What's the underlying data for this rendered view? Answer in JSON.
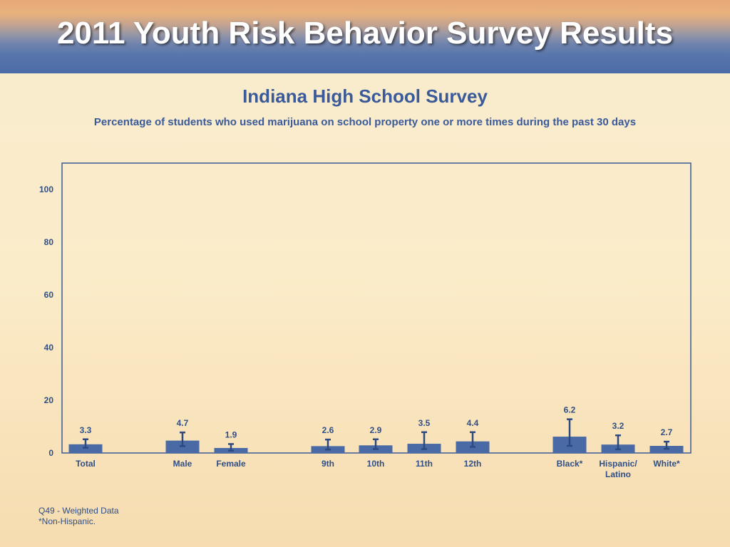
{
  "banner": {
    "title": "2011 Youth Risk Behavior Survey Results"
  },
  "chart_data": {
    "type": "bar",
    "title": "Indiana High School Survey",
    "subtitle": "Percentage of students who used marijuana on school property one or more times during the past 30 days",
    "xlabel": "",
    "ylabel": "",
    "ylim": [
      0,
      110
    ],
    "yticks": [
      0,
      20,
      40,
      60,
      80,
      100
    ],
    "grid": false,
    "legend": "none",
    "colors": {
      "bar": "#4a6aa5",
      "error_bar": "#2c4a80",
      "axis": "#3b5997"
    },
    "groups": [
      {
        "categories": [
          {
            "label": "Total",
            "value": 3.3,
            "ci": [
              2.0,
              5.2
            ]
          }
        ]
      },
      {
        "categories": [
          {
            "label": "Male",
            "value": 4.7,
            "ci": [
              2.6,
              7.8
            ]
          },
          {
            "label": "Female",
            "value": 1.9,
            "ci": [
              0.9,
              3.4
            ]
          }
        ]
      },
      {
        "categories": [
          {
            "label": "9th",
            "value": 2.6,
            "ci": [
              1.3,
              5.1
            ]
          },
          {
            "label": "10th",
            "value": 2.9,
            "ci": [
              1.5,
              5.2
            ]
          },
          {
            "label": "11th",
            "value": 3.5,
            "ci": [
              1.5,
              7.9
            ]
          },
          {
            "label": "12th",
            "value": 4.4,
            "ci": [
              2.3,
              7.9
            ]
          }
        ]
      },
      {
        "categories": [
          {
            "label": "Black*",
            "value": 6.2,
            "ci": [
              2.7,
              12.8
            ]
          },
          {
            "label": "Hispanic/\nLatino",
            "value": 3.2,
            "ci": [
              1.4,
              6.7
            ]
          },
          {
            "label": "White*",
            "value": 2.7,
            "ci": [
              1.6,
              4.3
            ]
          }
        ]
      }
    ]
  },
  "footnotes": {
    "line1": "Q49 - Weighted Data",
    "line2": "*Non-Hispanic."
  }
}
